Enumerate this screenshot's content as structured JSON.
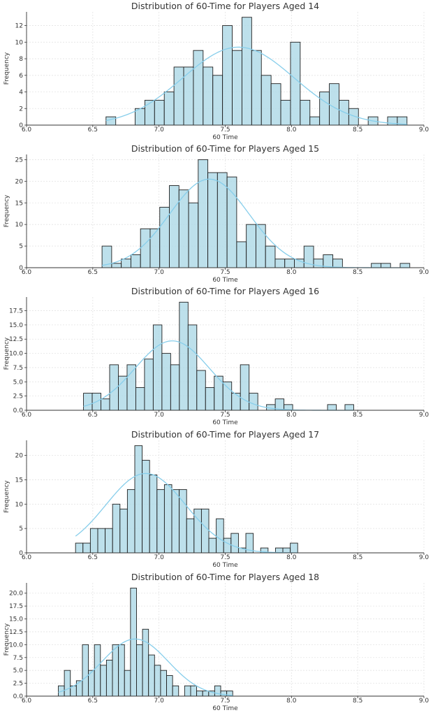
{
  "colors": {
    "bar_fill": "#add8e6",
    "bar_edge": "#1f1f1f",
    "kde_line": "#87ceeb",
    "grid": "#e3e3e3",
    "axis": "#333333"
  },
  "chart_data": [
    {
      "type": "bar",
      "title": "Distribution of 60-Time for Players Aged 14",
      "xlabel": "60 Time",
      "ylabel": "Frequency",
      "xlim": [
        6.0,
        9.0
      ],
      "ylim": [
        0,
        13.65
      ],
      "xticks": [
        "6.0",
        "6.5",
        "7.0",
        "7.5",
        "8.0",
        "8.5",
        "9.0"
      ],
      "yticks": [
        "0",
        "2",
        "4",
        "6",
        "8",
        "10",
        "12"
      ],
      "bin_start": 6.6,
      "bin_width": 0.0733,
      "values": [
        1,
        0,
        0,
        2,
        3,
        3,
        4,
        7,
        7,
        9,
        7,
        6,
        12,
        9,
        13,
        9,
        6,
        5,
        3,
        10,
        3,
        1,
        4,
        5,
        3,
        2,
        0,
        1,
        0,
        1,
        1
      ],
      "kde_mean": 7.6,
      "kde_sd": 0.42,
      "kde_peak": 9.4
    },
    {
      "type": "bar",
      "title": "Distribution of 60-Time for Players Aged 15",
      "xlabel": "60 Time",
      "ylabel": "Frequency",
      "xlim": [
        6.0,
        9.0
      ],
      "ylim": [
        0,
        26.2
      ],
      "xticks": [
        "6.0",
        "6.5",
        "7.0",
        "7.5",
        "8.0",
        "8.5",
        "9.0"
      ],
      "yticks": [
        "0",
        "5",
        "10",
        "15",
        "20",
        "25"
      ],
      "bin_start": 6.57,
      "bin_width": 0.0726,
      "values": [
        5,
        1,
        2,
        3,
        9,
        9,
        14,
        19,
        18,
        15,
        25,
        22,
        22,
        21,
        6,
        10,
        10,
        5,
        2,
        2,
        2,
        5,
        2,
        3,
        2,
        0,
        0,
        0,
        1,
        1,
        0,
        1
      ],
      "kde_mean": 7.38,
      "kde_sd": 0.3,
      "kde_peak": 20.5
    },
    {
      "type": "bar",
      "title": "Distribution of 60-Time for Players Aged 16",
      "xlabel": "60 Time",
      "ylabel": "Frequency",
      "xlim": [
        6.0,
        9.0
      ],
      "ylim": [
        0,
        19.9
      ],
      "xticks": [
        "6.0",
        "6.5",
        "7.0",
        "7.5",
        "8.0",
        "8.5",
        "9.0"
      ],
      "yticks": [
        "0.0",
        "2.5",
        "5.0",
        "7.5",
        "10.0",
        "12.5",
        "15.0",
        "17.5"
      ],
      "bin_start": 6.43,
      "bin_width": 0.0658,
      "values": [
        3,
        3,
        2,
        8,
        6,
        8,
        4,
        9,
        15,
        10,
        8,
        19,
        15,
        7,
        4,
        6,
        5,
        3,
        8,
        3,
        0,
        1,
        2,
        1,
        0,
        0,
        0,
        0,
        1,
        0,
        1
      ],
      "kde_mean": 7.1,
      "kde_sd": 0.28,
      "kde_peak": 12.2
    },
    {
      "type": "bar",
      "title": "Distribution of 60-Time for Players Aged 17",
      "xlabel": "60 Time",
      "ylabel": "Frequency",
      "xlim": [
        6.0,
        9.0
      ],
      "ylim": [
        0,
        23.1
      ],
      "xticks": [
        "6.0",
        "6.5",
        "7.0",
        "7.5",
        "8.0",
        "8.5",
        "9.0"
      ],
      "yticks": [
        "0",
        "5",
        "10",
        "15",
        "20"
      ],
      "bin_start": 6.37,
      "bin_width": 0.0559,
      "values": [
        2,
        2,
        5,
        5,
        5,
        10,
        9,
        13,
        22,
        19,
        16,
        13,
        14,
        13,
        13,
        7,
        9,
        9,
        3,
        7,
        3,
        4,
        1,
        4,
        0,
        1,
        0,
        1,
        1,
        2
      ],
      "kde_mean": 6.9,
      "kde_sd": 0.3,
      "kde_peak": 16.3
    },
    {
      "type": "bar",
      "title": "Distribution of 60-Time for Players Aged 18",
      "xlabel": "60 Time",
      "ylabel": "Frequency",
      "xlim": [
        6.0,
        9.0
      ],
      "ylim": [
        0,
        22.0
      ],
      "xticks": [
        "6.0",
        "6.5",
        "7.0",
        "7.5",
        "8.0",
        "8.5",
        "9.0"
      ],
      "yticks": [
        "0.0",
        "2.5",
        "5.0",
        "7.5",
        "10.0",
        "12.5",
        "15.0",
        "17.5",
        "20.0"
      ],
      "bin_start": 6.24,
      "bin_width": 0.0454,
      "values": [
        2,
        5,
        2,
        3,
        10,
        5,
        10,
        6,
        7,
        10,
        10,
        5,
        21,
        10,
        13,
        8,
        6,
        5,
        4,
        2,
        0,
        2,
        2,
        1,
        1,
        1,
        2,
        1,
        1
      ],
      "kde_mean": 6.82,
      "kde_sd": 0.25,
      "kde_peak": 11.1
    }
  ]
}
